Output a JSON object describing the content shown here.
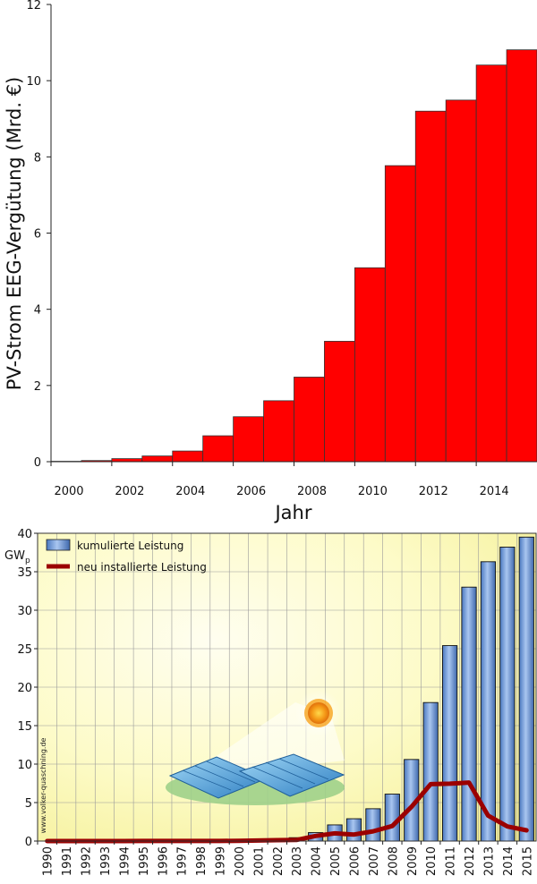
{
  "chart_data": [
    {
      "type": "bar",
      "title": "",
      "xlabel": "Jahr",
      "ylabel": "PV-Strom EEG-Vergütung (Mrd. €)",
      "categories": [
        "2000",
        "2001",
        "2002",
        "2003",
        "2004",
        "2005",
        "2006",
        "2007",
        "2008",
        "2009",
        "2010",
        "2011",
        "2012",
        "2013",
        "2014",
        "2015"
      ],
      "values": [
        0.01,
        0.03,
        0.08,
        0.15,
        0.28,
        0.68,
        1.18,
        1.6,
        2.22,
        3.16,
        5.09,
        7.77,
        9.2,
        9.49,
        10.41,
        10.81
      ],
      "ylim": [
        0,
        12
      ],
      "yticks": [
        "0",
        "2",
        "4",
        "6",
        "8",
        "10",
        "12"
      ],
      "xticks": [
        "2000",
        "2002",
        "2004",
        "2006",
        "2008",
        "2010",
        "2012",
        "2014"
      ],
      "bar_color": "#ff0000",
      "grid": false
    },
    {
      "type": "bar",
      "title": "",
      "xlabel": "",
      "ylabel": "GW",
      "ylabel_sub": "p",
      "categories": [
        "1990",
        "1991",
        "1992",
        "1993",
        "1994",
        "1995",
        "1996",
        "1997",
        "1998",
        "1999",
        "2000",
        "2001",
        "2002",
        "2003",
        "2004",
        "2005",
        "2006",
        "2007",
        "2008",
        "2009",
        "2010",
        "2011",
        "2012",
        "2013",
        "2014",
        "2015"
      ],
      "ylim": [
        0,
        40
      ],
      "yticks": [
        "0",
        "5",
        "10",
        "15",
        "20",
        "25",
        "30",
        "35",
        "40"
      ],
      "grid": true,
      "legend_position": "top-left",
      "series": [
        {
          "name": "kumulierte Leistung",
          "type": "bar",
          "color": "#6f9bd8",
          "values": [
            0.002,
            0.003,
            0.005,
            0.008,
            0.012,
            0.018,
            0.028,
            0.042,
            0.054,
            0.07,
            0.11,
            0.18,
            0.3,
            0.44,
            1.1,
            2.1,
            2.9,
            4.2,
            6.1,
            10.6,
            18.0,
            25.4,
            33.0,
            36.3,
            38.2,
            39.5
          ]
        },
        {
          "name": "neu installierte Leistung",
          "type": "line",
          "color": "#9b0000",
          "values": [
            0.001,
            0.001,
            0.002,
            0.003,
            0.004,
            0.006,
            0.01,
            0.014,
            0.012,
            0.016,
            0.04,
            0.07,
            0.12,
            0.14,
            0.66,
            1.0,
            0.85,
            1.27,
            1.95,
            4.45,
            7.4,
            7.45,
            7.6,
            3.3,
            1.9,
            1.4
          ]
        }
      ],
      "watermark": "www.volker-quaschning.de"
    }
  ]
}
